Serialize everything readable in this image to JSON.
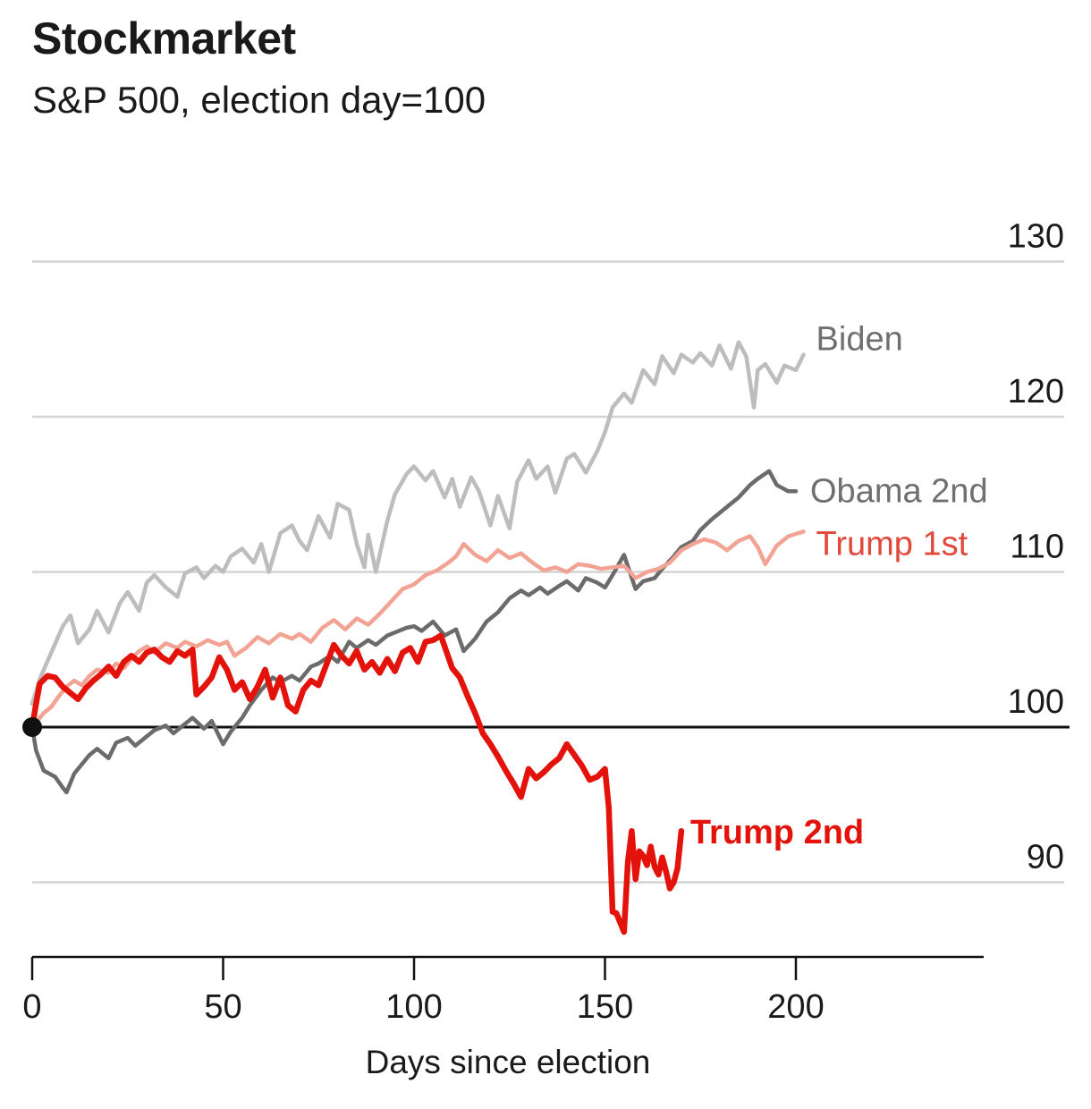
{
  "chart_data": {
    "type": "line",
    "title": "Stockmarket",
    "subtitle": "S&P 500, election day=100",
    "xlabel": "Days since election",
    "ylabel": "",
    "xlim": [
      0,
      246
    ],
    "ylim": [
      86.6,
      134
    ],
    "x_ticks": [
      "0",
      "50",
      "100",
      "150",
      "200"
    ],
    "y_ticks": [
      "90",
      "100",
      "110",
      "120",
      "130"
    ],
    "baseline": 100,
    "colors": {
      "biden": "#bdbdbd",
      "obama": "#6b6b6b",
      "trump1": "#f2a394",
      "trump2": "#e3120b",
      "labelGrey": "#6f6f6f",
      "labelTrump1": "#e0483a",
      "grid": "#d4d4d4"
    },
    "series": [
      {
        "name": "Biden",
        "x": [
          0,
          2,
          5,
          8,
          10,
          12,
          15,
          17,
          20,
          23,
          25,
          28,
          30,
          32,
          35,
          38,
          40,
          43,
          45,
          48,
          50,
          52,
          55,
          58,
          60,
          62,
          65,
          68,
          70,
          72,
          75,
          78,
          80,
          83,
          85,
          87,
          88,
          90,
          93,
          95,
          98,
          100,
          103,
          105,
          108,
          110,
          112,
          115,
          117,
          120,
          122,
          125,
          127,
          130,
          132,
          135,
          137,
          140,
          142,
          145,
          148,
          150,
          152,
          155,
          157,
          160,
          163,
          165,
          168,
          170,
          173,
          175,
          178,
          180,
          183,
          185,
          187,
          189,
          190,
          192,
          195,
          197,
          200,
          202
        ],
        "values": [
          101.5,
          103.1,
          104.8,
          106.5,
          107.2,
          105.4,
          106.3,
          107.5,
          106.1,
          108.0,
          108.7,
          107.5,
          109.3,
          109.8,
          109.0,
          108.4,
          109.9,
          110.3,
          109.6,
          110.4,
          110.0,
          111.0,
          111.5,
          110.6,
          111.8,
          110.0,
          112.5,
          113.0,
          112.0,
          111.4,
          113.6,
          112.2,
          114.4,
          114.0,
          111.8,
          110.3,
          112.4,
          110.0,
          113.3,
          115.0,
          116.3,
          116.8,
          115.9,
          116.5,
          114.8,
          116.0,
          114.2,
          116.1,
          115.2,
          113.0,
          114.9,
          112.8,
          115.8,
          117.2,
          116.0,
          116.8,
          115.1,
          117.3,
          117.6,
          116.4,
          117.8,
          119.0,
          120.6,
          121.5,
          120.9,
          123.0,
          122.1,
          123.9,
          122.8,
          124.0,
          123.5,
          124.1,
          123.3,
          124.6,
          123.1,
          124.8,
          123.9,
          120.6,
          123.0,
          123.4,
          122.2,
          123.3,
          123.0,
          124.0
        ]
      },
      {
        "name": "Obama 2nd",
        "x": [
          0,
          1,
          3,
          6,
          8,
          9,
          11,
          13,
          15,
          17,
          20,
          22,
          25,
          27,
          30,
          32,
          35,
          37,
          40,
          42,
          45,
          47,
          50,
          52,
          55,
          57,
          60,
          63,
          65,
          68,
          70,
          73,
          75,
          78,
          80,
          83,
          85,
          88,
          90,
          93,
          95,
          98,
          100,
          102,
          105,
          108,
          111,
          113,
          116,
          119,
          122,
          125,
          128,
          130,
          133,
          135,
          138,
          140,
          143,
          145,
          148,
          150,
          152,
          155,
          158,
          160,
          163,
          165,
          168,
          170,
          173,
          175,
          178,
          180,
          182,
          185,
          188,
          190,
          193,
          195,
          198,
          200
        ],
        "values": [
          100.0,
          98.5,
          97.2,
          96.8,
          96.1,
          95.8,
          97.0,
          97.6,
          98.2,
          98.6,
          98.0,
          99.0,
          99.3,
          98.8,
          99.4,
          99.8,
          100.1,
          99.6,
          100.2,
          100.6,
          99.9,
          100.4,
          98.9,
          99.7,
          100.6,
          101.4,
          102.4,
          103.2,
          102.9,
          103.3,
          103.0,
          103.9,
          104.1,
          104.6,
          104.2,
          105.5,
          105.1,
          105.6,
          105.3,
          105.9,
          106.1,
          106.4,
          106.5,
          106.2,
          106.8,
          105.9,
          106.3,
          104.9,
          105.7,
          106.8,
          107.4,
          108.3,
          108.8,
          108.5,
          109.0,
          108.6,
          109.1,
          109.4,
          108.8,
          109.6,
          109.3,
          109.0,
          109.8,
          111.1,
          108.9,
          109.4,
          109.6,
          110.2,
          111.0,
          111.6,
          112.0,
          112.7,
          113.4,
          113.8,
          114.2,
          114.8,
          115.6,
          116.0,
          116.5,
          115.6,
          115.2,
          115.2
        ]
      },
      {
        "name": "Trump 1st",
        "x": [
          0,
          3,
          5,
          7,
          9,
          11,
          13,
          15,
          17,
          20,
          22,
          24,
          26,
          28,
          30,
          32,
          35,
          38,
          40,
          43,
          46,
          49,
          51,
          53,
          56,
          59,
          62,
          65,
          68,
          70,
          73,
          76,
          79,
          82,
          85,
          88,
          91,
          94,
          97,
          100,
          103,
          106,
          109,
          111,
          113,
          116,
          119,
          122,
          125,
          128,
          131,
          134,
          137,
          140,
          143,
          146,
          149,
          152,
          155,
          158,
          161,
          164,
          167,
          170,
          173,
          176,
          179,
          182,
          185,
          188,
          190,
          192,
          195,
          198,
          202
        ],
        "values": [
          100.0,
          100.9,
          101.3,
          102.0,
          102.6,
          103.0,
          102.7,
          103.3,
          103.7,
          103.5,
          104.1,
          103.8,
          104.4,
          104.9,
          105.2,
          104.8,
          105.4,
          105.1,
          105.5,
          105.2,
          105.6,
          105.3,
          105.5,
          104.6,
          105.1,
          105.8,
          105.4,
          106.0,
          105.7,
          106.0,
          105.5,
          106.4,
          106.9,
          106.3,
          107.0,
          106.6,
          107.3,
          108.1,
          108.9,
          109.2,
          109.8,
          110.1,
          110.6,
          111.0,
          111.8,
          111.1,
          110.7,
          111.4,
          110.9,
          111.2,
          110.6,
          110.1,
          110.3,
          110.0,
          110.5,
          110.4,
          110.2,
          110.3,
          110.4,
          109.6,
          110.0,
          110.2,
          110.6,
          111.4,
          111.8,
          112.1,
          111.9,
          111.4,
          112.0,
          112.3,
          111.6,
          110.5,
          111.7,
          112.3,
          112.6
        ]
      },
      {
        "name": "Trump 2nd",
        "x": [
          0,
          1,
          2,
          4,
          6,
          8,
          10,
          12,
          14,
          16,
          18,
          20,
          22,
          24,
          26,
          28,
          30,
          32,
          34,
          36,
          38,
          40,
          42,
          43,
          45,
          47,
          49,
          51,
          53,
          55,
          57,
          59,
          61,
          63,
          65,
          67,
          69,
          71,
          73,
          75,
          77,
          79,
          81,
          83,
          85,
          87,
          89,
          91,
          93,
          95,
          97,
          99,
          101,
          103,
          105,
          107,
          108,
          110,
          112,
          114,
          116,
          118,
          120,
          122,
          124,
          126,
          128,
          130,
          132,
          134,
          136,
          138,
          140,
          142,
          144,
          146,
          148,
          150,
          151,
          152,
          153,
          154,
          155,
          156,
          157,
          158,
          159,
          160,
          161,
          162,
          163,
          164,
          165,
          166,
          167,
          168,
          169,
          170
        ],
        "values": [
          100.0,
          101.5,
          102.8,
          103.3,
          103.2,
          102.6,
          102.2,
          101.8,
          102.5,
          103.0,
          103.4,
          103.9,
          103.3,
          104.2,
          104.6,
          104.2,
          104.8,
          105.0,
          104.5,
          104.2,
          104.9,
          104.6,
          105.0,
          102.1,
          102.6,
          103.2,
          104.5,
          103.7,
          102.4,
          102.9,
          101.8,
          102.6,
          103.7,
          101.9,
          103.2,
          101.4,
          101.0,
          102.4,
          103.0,
          102.7,
          104.0,
          105.3,
          104.6,
          104.1,
          104.9,
          103.7,
          104.2,
          103.5,
          104.4,
          103.6,
          104.8,
          105.1,
          104.2,
          105.5,
          105.6,
          105.9,
          105.2,
          103.8,
          103.2,
          102.0,
          100.9,
          99.6,
          98.9,
          98.1,
          97.2,
          96.4,
          95.5,
          97.3,
          96.7,
          97.1,
          97.6,
          98.0,
          98.9,
          98.2,
          97.5,
          96.6,
          96.8,
          97.3,
          94.8,
          88.1,
          88.0,
          87.4,
          86.8,
          91.3,
          93.3,
          90.2,
          92.0,
          91.7,
          91.1,
          92.3,
          91.0,
          90.5,
          91.6,
          90.7,
          89.6,
          90.0,
          90.9,
          93.3
        ]
      }
    ]
  }
}
